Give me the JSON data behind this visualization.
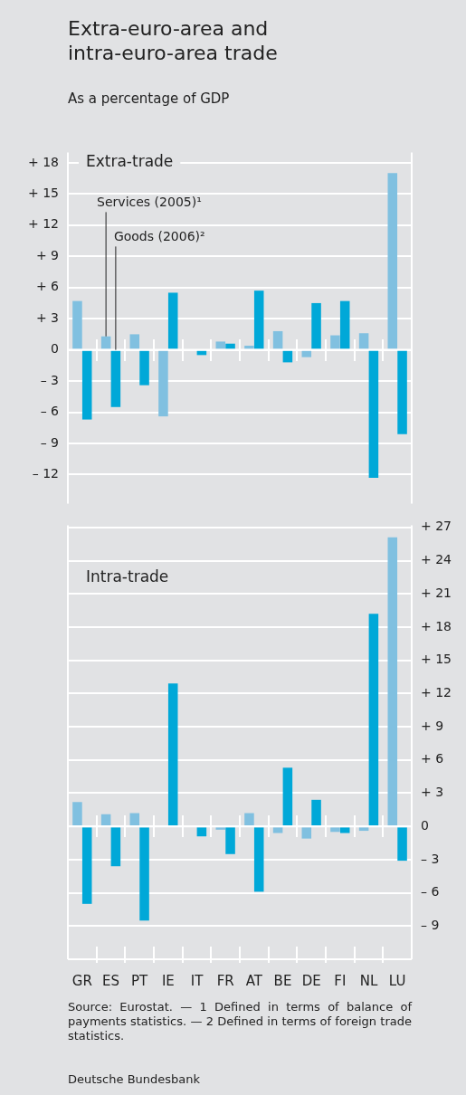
{
  "chart_data": [
    {
      "type": "bar",
      "title": "Extra-euro-area and intra-euro-area trade",
      "subtitle": "As a percentage of GDP",
      "categories": [
        null,
        null,
        null,
        null,
        null,
        null,
        null,
        null,
        null,
        null,
        null,
        null
      ],
      "series": [
        {
          "name": "Services (2005)¹",
          "color": "#80c0e0",
          "values": [
            4.7,
            1.3,
            1.5,
            -6.4,
            null,
            0.8,
            0.4,
            1.8,
            -0.7,
            1.4,
            1.6,
            17.0
          ]
        },
        {
          "name": "Goods (2006)²",
          "color": "#00a8d8",
          "values": [
            -6.7,
            -5.5,
            -3.4,
            5.5,
            -0.5,
            0.6,
            5.7,
            -1.2,
            4.5,
            4.7,
            -12.3,
            -8.1
          ]
        }
      ],
      "ylim": [
        -14.8,
        19
      ],
      "yticks": [
        {
          "value": -12,
          "label": "– 12"
        },
        {
          "value": -9,
          "label": "– 9"
        },
        {
          "value": -6,
          "label": "– 6"
        },
        {
          "value": -3,
          "label": "– 3"
        },
        0,
        {
          "value": 3,
          "label": "+ 3"
        },
        {
          "value": 6,
          "label": "+ 6"
        },
        {
          "value": 9,
          "label": "+ 9"
        },
        {
          "value": 12,
          "label": "+ 12"
        },
        {
          "value": 15,
          "label": "+ 15"
        },
        {
          "value": 18,
          "label": "+ 18"
        }
      ],
      "grid": "y",
      "tick_labels": "y",
      "annotations": [
        "Extra-trade"
      ]
    },
    {
      "type": "bar",
      "categories": [
        "GR",
        "ES",
        "PT",
        "IE",
        "IT",
        "FR",
        "AT",
        "BE",
        "DE",
        "FI",
        "NL",
        "LU"
      ],
      "series": [
        {
          "color": "#80c0e0",
          "axis": "y2",
          "values": [
            2.2,
            1.1,
            1.2,
            null,
            null,
            -0.3,
            1.2,
            -0.6,
            -1.1,
            -0.5,
            -0.4,
            26.1
          ]
        },
        {
          "color": "#00a8d8",
          "axis": "y2",
          "values": [
            -7.0,
            -3.6,
            -8.5,
            12.9,
            -0.9,
            -2.5,
            -5.9,
            5.3,
            2.4,
            -0.6,
            19.2,
            -3.1
          ]
        }
      ],
      "y2lim": [
        -12,
        27.2
      ],
      "y2ticks": [
        {
          "value": -9,
          "label": "– 9"
        },
        {
          "value": -6,
          "label": "– 6"
        },
        {
          "value": -3,
          "label": "– 3"
        },
        0,
        {
          "value": 3,
          "label": "+ 3"
        },
        {
          "value": 6,
          "label": "+ 6"
        },
        {
          "value": 9,
          "label": "+ 9"
        },
        {
          "value": 12,
          "label": "+ 12"
        },
        {
          "value": 15,
          "label": "+ 15"
        },
        {
          "value": 18,
          "label": "+ 18"
        },
        {
          "value": 21,
          "label": "+ 21"
        },
        {
          "value": 24,
          "label": "+ 24"
        },
        {
          "value": 27,
          "label": "+ 27"
        }
      ],
      "grid": "y",
      "annotations": [
        "Intra-trade",
        "Source: Eurostat. — 1 Defined in terms of balance of payments statistics. — 2 Defined in terms of foreign trade statistics.",
        "Deutsche Bundesbank"
      ]
    }
  ]
}
